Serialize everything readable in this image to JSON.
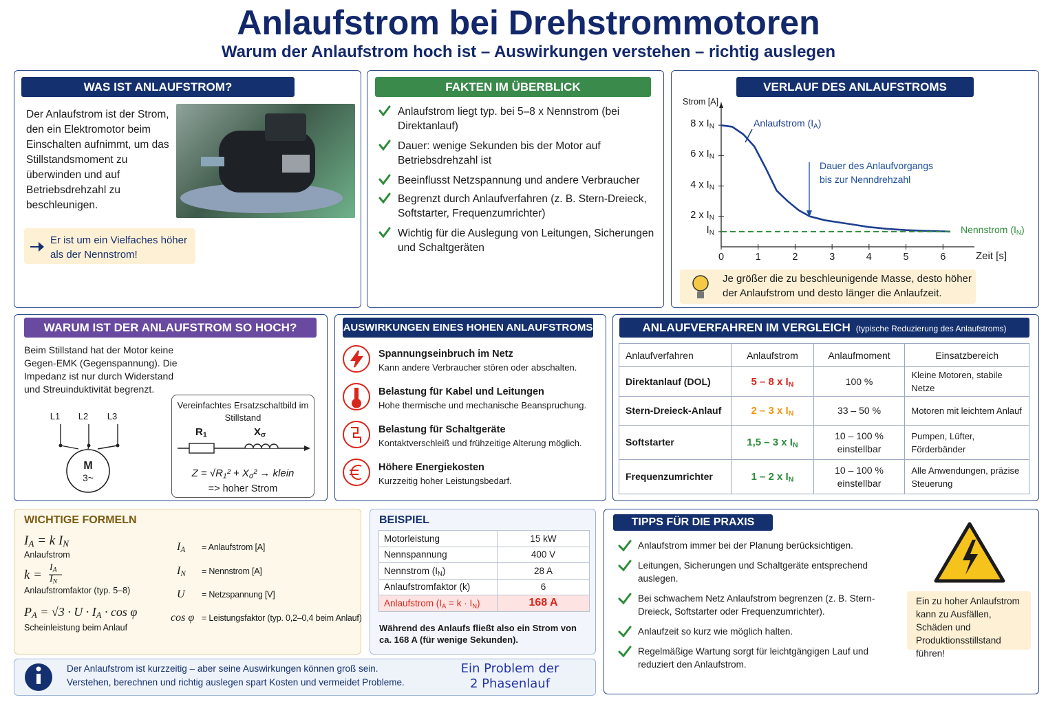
{
  "header": {
    "title": "Anlaufstrom bei Drehstrommotoren",
    "subtitle": "Warum der Anlaufstrom hoch ist – Auswirkungen verstehen – richtig auslegen"
  },
  "was_ist": {
    "title": "WAS IST ANLAUFSTROM?",
    "text": "Der Anlaufstrom ist der Strom, den ein Elektromotor beim Einschalten aufnimmt, um das Stillstandsmoment zu überwinden und auf Betriebsdrehzahl zu beschleunigen.",
    "note": "Er ist um ein Vielfaches höher als der Nennstrom!"
  },
  "fakten": {
    "title": "FAKTEN IM ÜBERBLICK",
    "items": [
      "Anlaufstrom liegt typ. bei 5–8 x Nennstrom (bei Direktanlauf)",
      "Dauer: wenige Sekunden bis der Motor auf Betriebsdrehzahl ist",
      "Beeinflusst Netzspannung und andere Verbraucher",
      "Begrenzt durch Anlaufverfahren (z. B. Stern-Dreieck, Softstarter, Frequenzumrichter)",
      "Wichtig für die Auslegung von Leitungen, Sicherungen und Schaltgeräten"
    ]
  },
  "chart_data": {
    "type": "line",
    "title": "VERLAUF DES ANLAUFSTROMS",
    "y_label": "Strom [A]",
    "x_label": "Zeit [s]",
    "x": [
      0,
      0.3,
      0.6,
      0.9,
      1.2,
      1.5,
      1.8,
      2.1,
      2.4,
      2.8,
      3.2,
      3.6,
      4,
      4.5,
      5,
      5.5,
      6,
      6.2
    ],
    "series": [
      {
        "name": "Anlaufstrom (IA)",
        "color": "#1c3f8f",
        "style": "solid",
        "values": [
          8,
          7.9,
          7.4,
          6.6,
          5.2,
          3.7,
          3.0,
          2.4,
          2.0,
          1.75,
          1.6,
          1.45,
          1.3,
          1.18,
          1.1,
          1.05,
          1.02,
          1.0
        ]
      },
      {
        "name": "Nennstrom (IN)",
        "color": "#2e8b3a",
        "style": "dashed",
        "values": [
          1,
          1,
          1,
          1,
          1,
          1,
          1,
          1,
          1,
          1,
          1,
          1,
          1,
          1,
          1,
          1,
          1,
          1
        ]
      }
    ],
    "xlim": [
      0,
      7
    ],
    "ylim": [
      0,
      9.5
    ],
    "xticks": [
      0,
      1,
      2,
      3,
      4,
      5,
      6
    ],
    "yticks": [
      {
        "value": 1,
        "label": "IN"
      },
      {
        "value": 2,
        "label": "2 x IN"
      },
      {
        "value": 4,
        "label": "4 x IN"
      },
      {
        "value": 6,
        "label": "6 x IN"
      },
      {
        "value": 8,
        "label": "8 x IN"
      }
    ],
    "grid": false,
    "annotation": "Dauer des Anlaufvorgangs bis zur Nenndrehzahl"
  },
  "verlauf_note": "Je größer die zu beschleunigende Masse, desto höher der Anlaufstrom und desto länger die Anlaufzeit.",
  "warum": {
    "title": "WARUM IST DER ANLAUFSTROM SO HOCH?",
    "text": "Beim Stillstand hat der Motor keine Gegen-EMK (Gegenspannung). Die Impedanz ist nur durch Widerstand und Streuinduktivität begrenzt.",
    "phases": [
      "L1",
      "L2",
      "L3"
    ],
    "motor": [
      "M",
      "3~"
    ],
    "circuit": {
      "title": "Vereinfachtes Ersatzschaltbild im Stillstand",
      "r": "R1",
      "x": "Xσ",
      "formula": "Z = √R1² + Xσ² → klein",
      "result": "=> hoher Strom"
    }
  },
  "auswirkungen": {
    "title": "AUSWIRKUNGEN EINES HOHEN ANLAUFSTROMS",
    "items": [
      {
        "title": "Spannungseinbruch im Netz",
        "text": "Kann andere Verbraucher stören oder abschalten."
      },
      {
        "title": "Belastung für Kabel und Leitungen",
        "text": "Hohe thermische und mechanische Beanspruchung."
      },
      {
        "title": "Belastung für Schaltgeräte",
        "text": "Kontaktverschleiß und frühzeitige Alterung möglich."
      },
      {
        "title": "Höhere Energiekosten",
        "text": "Kurzzeitig hoher Leistungsbedarf."
      }
    ]
  },
  "verfahren": {
    "title": "ANLAUFVERFAHREN IM VERGLEICH",
    "subtitle": "(typische Reduzierung des Anlaufstroms)",
    "header": [
      "Anlaufverfahren",
      "Anlaufstrom",
      "Anlaufmoment",
      "Einsatzbereich"
    ],
    "rows": [
      [
        "Direktanlauf (DOL)",
        "5 – 8 x IN",
        "100 %",
        "Kleine Motoren, stabile Netze"
      ],
      [
        "Stern-Dreieck-Anlauf",
        "2 – 3 x IN",
        "33 – 50 %",
        "Motoren mit leichtem Anlauf"
      ],
      [
        "Softstarter",
        "1,5 – 3 x IN",
        "10 – 100 % einstellbar",
        "Pumpen, Lüfter, Förderbänder"
      ],
      [
        "Frequenzumrichter",
        "1 – 2 x IN",
        "10 – 100 % einstellbar",
        "Alle Anwendungen, präzise Steuerung"
      ]
    ],
    "current_colors": [
      "#d9261c",
      "#f0960e",
      "#2e8b3a",
      "#2e8b3a"
    ]
  },
  "formeln": {
    "title": "WICHTIGE FORMELN",
    "f1": {
      "formula": "IA = k IN",
      "caption": "Anlaufstrom"
    },
    "f2": {
      "lhs": "k =",
      "num": "IA",
      "den": "IN",
      "caption": "Anlaufstromfaktor (typ. 5–8)"
    },
    "f3": {
      "formula": "PA = √3 · U · IA · cos φ",
      "caption": "Scheinleistung beim Anlauf"
    },
    "legend": [
      [
        "IA",
        "= Anlaufstrom [A]"
      ],
      [
        "IN",
        "= Nennstrom [A]"
      ],
      [
        "U",
        "= Netzspannung [V]"
      ],
      [
        "cos φ",
        "= Leistungsfaktor (typ. 0,2–0,4 beim Anlauf)"
      ]
    ]
  },
  "beispiel": {
    "title": "BEISPIEL",
    "rows": [
      [
        "Motorleistung",
        "15 kW"
      ],
      [
        "Nennspannung",
        "400 V"
      ],
      [
        "Nennstrom (IN)",
        "28 A"
      ],
      [
        "Anlaufstromfaktor (k)",
        "6"
      ],
      [
        "Anlaufstrom (IA = k · IN)",
        "168 A"
      ]
    ],
    "note": "Während des Anlaufs fließt also ein Strom von ca. 168 A (für wenige Sekunden)."
  },
  "tipps": {
    "title": "TIPPS FÜR DIE PRAXIS",
    "items": [
      "Anlaufstrom immer bei der Planung berücksichtigen.",
      "Leitungen, Sicherungen und Schaltgeräte entsprechend auslegen.",
      "Bei schwachem Netz Anlaufstrom begrenzen (z. B. Stern-Dreieck, Softstarter oder Frequenzumrichter).",
      "Anlaufzeit so kurz wie möglich halten.",
      "Regelmäßige Wartung sorgt für leichtgängigen Lauf und reduziert den Anlaufstrom."
    ],
    "warning": "Ein zu hoher Anlaufstrom kann zu Ausfällen, Schäden und Produktionsstillstand führen!"
  },
  "footer": {
    "lines": [
      "Der Anlaufstrom ist kurzzeitig – aber seine Auswirkungen können groß sein.",
      "Verstehen, berechnen und richtig auslegen spart Kosten und vermeidet Probleme."
    ],
    "handwritten": "Ein Problem der 2 Phasenlauf"
  }
}
